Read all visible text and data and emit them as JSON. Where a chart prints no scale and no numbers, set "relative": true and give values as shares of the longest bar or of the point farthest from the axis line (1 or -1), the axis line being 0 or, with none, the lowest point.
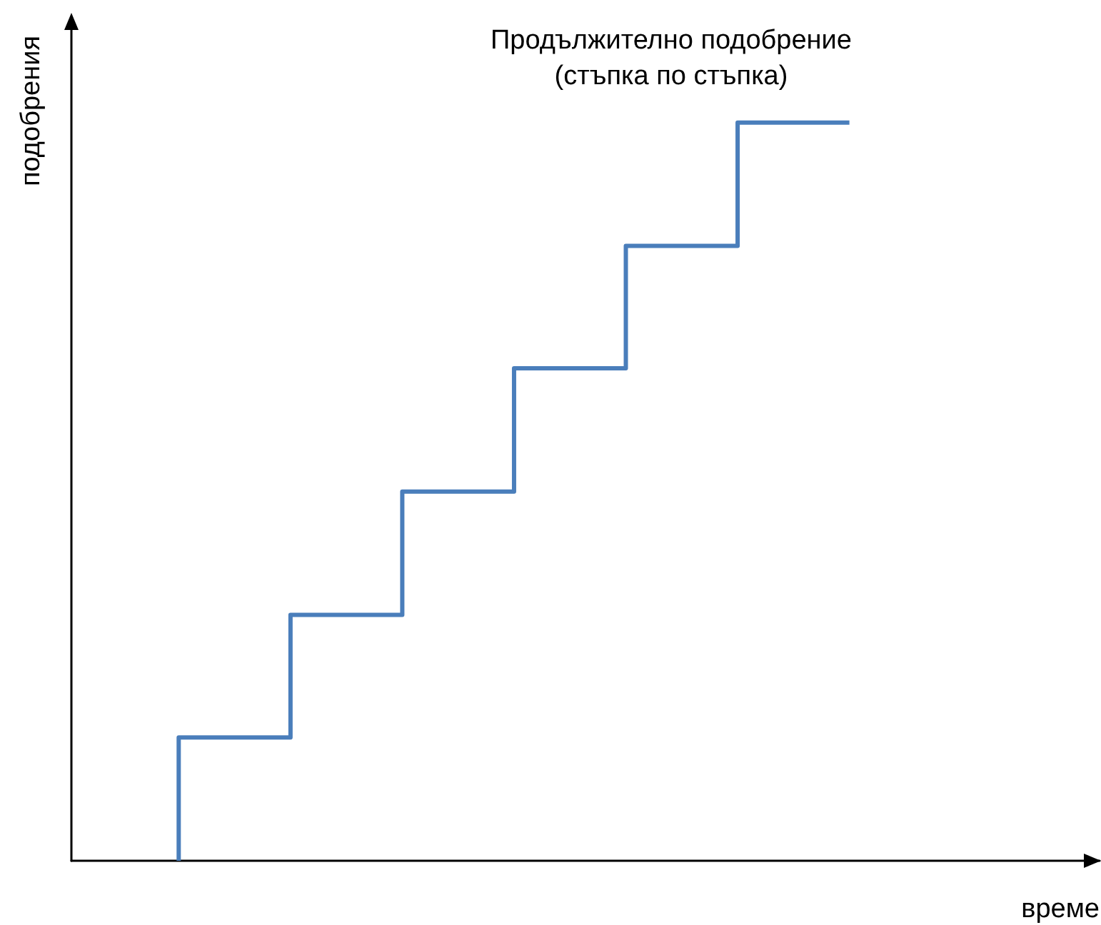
{
  "chart_data": {
    "type": "step",
    "title": "Продължително подобрение",
    "subtitle": "(стъпка по стъпка)",
    "xlabel": "време",
    "ylabel": "подобрения",
    "categories": [
      null,
      null,
      null,
      null,
      null,
      null,
      null
    ],
    "values": [
      0,
      0.167,
      0.333,
      0.5,
      0.667,
      0.833,
      1
    ],
    "color": "#4a7ebb",
    "relative": true,
    "marker": "none",
    "line_style": "solid",
    "grid": false
  }
}
